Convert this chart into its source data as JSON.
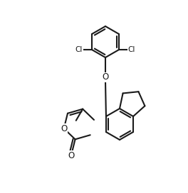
{
  "bg": "#ffffff",
  "lc": "#1a1a1a",
  "lw": 1.5,
  "fs": 7.0,
  "figsize": [
    2.64,
    2.72
  ],
  "dpi": 100,
  "atoms": {
    "comment": "all coords in figure units (x: 0-264, y: 0-272, y=0 at bottom)"
  }
}
